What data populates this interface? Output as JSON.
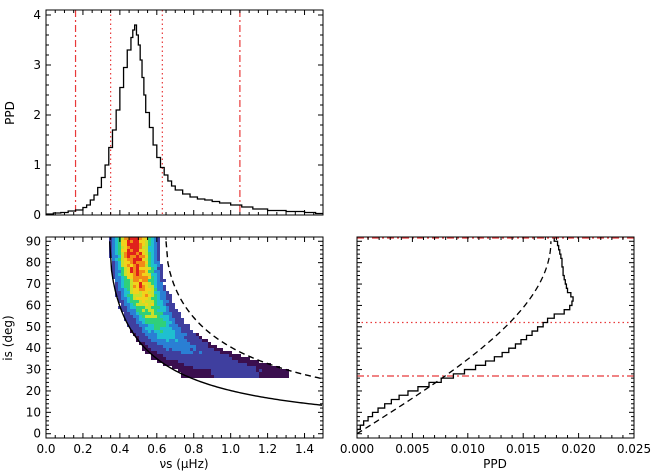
{
  "chart_data": [
    {
      "type": "line",
      "panel": "top-marginal",
      "xlabel": "",
      "ylabel": "PPD",
      "xlim": [
        0.0,
        1.5
      ],
      "ylim": [
        0,
        4.1
      ],
      "yticks": [
        0,
        1,
        2,
        3,
        4
      ],
      "xticks": [
        0.0,
        0.2,
        0.4,
        0.6,
        0.8,
        1.0,
        1.2,
        1.4
      ],
      "show_xtick_labels": false,
      "series": [
        {
          "style": "histogram-step",
          "color": "#000000",
          "x": [
            0.0,
            0.04,
            0.08,
            0.12,
            0.16,
            0.2,
            0.22,
            0.24,
            0.26,
            0.28,
            0.3,
            0.32,
            0.34,
            0.36,
            0.38,
            0.4,
            0.42,
            0.44,
            0.46,
            0.47,
            0.48,
            0.49,
            0.5,
            0.51,
            0.52,
            0.53,
            0.54,
            0.56,
            0.58,
            0.6,
            0.62,
            0.64,
            0.66,
            0.68,
            0.7,
            0.74,
            0.78,
            0.82,
            0.86,
            0.9,
            0.94,
            1.0,
            1.06,
            1.12,
            1.2,
            1.3,
            1.4,
            1.46,
            1.5
          ],
          "y": [
            0.02,
            0.04,
            0.05,
            0.08,
            0.1,
            0.15,
            0.2,
            0.3,
            0.4,
            0.55,
            0.75,
            1.0,
            1.35,
            1.7,
            2.1,
            2.55,
            2.95,
            3.3,
            3.55,
            3.7,
            3.8,
            3.6,
            3.4,
            3.1,
            2.75,
            2.4,
            2.05,
            1.75,
            1.4,
            1.15,
            0.95,
            0.8,
            0.68,
            0.58,
            0.5,
            0.42,
            0.36,
            0.32,
            0.3,
            0.27,
            0.24,
            0.2,
            0.16,
            0.12,
            0.09,
            0.07,
            0.05,
            0.03,
            0.02
          ]
        }
      ],
      "vlines": [
        {
          "x": 0.16,
          "style": "dash-dot",
          "color": "#e8393a"
        },
        {
          "x": 0.35,
          "style": "dotted",
          "color": "#e8393a"
        },
        {
          "x": 0.63,
          "style": "dotted",
          "color": "#e8393a"
        },
        {
          "x": 1.05,
          "style": "dash-dot",
          "color": "#e8393a"
        }
      ]
    },
    {
      "type": "heatmap",
      "panel": "main-joint",
      "xlabel": "νs (μHz)",
      "ylabel": "is (deg)",
      "xlim": [
        0.0,
        1.5
      ],
      "ylim": [
        -2,
        92
      ],
      "xticks": [
        0.0,
        0.2,
        0.4,
        0.6,
        0.8,
        1.0,
        1.2,
        1.4
      ],
      "yticks": [
        0,
        10,
        20,
        30,
        40,
        50,
        60,
        70,
        80,
        90
      ],
      "colormap": [
        "#3b0f4f",
        "#3f3f9f",
        "#2a7fd4",
        "#1fbfd0",
        "#2fd07a",
        "#c8e02a",
        "#f2d21c",
        "#f28a16",
        "#e0211c"
      ],
      "density_ridge": {
        "i": [
          90,
          85,
          80,
          75,
          70,
          65,
          60,
          55,
          50,
          45,
          40,
          35,
          30
        ],
        "nu": [
          0.47,
          0.47,
          0.48,
          0.49,
          0.5,
          0.52,
          0.54,
          0.57,
          0.61,
          0.66,
          0.73,
          0.85,
          1.02
        ],
        "width": [
          0.14,
          0.14,
          0.14,
          0.14,
          0.14,
          0.15,
          0.15,
          0.16,
          0.17,
          0.19,
          0.22,
          0.28,
          0.36
        ],
        "peak_level": [
          1.0,
          0.98,
          0.95,
          0.9,
          0.82,
          0.72,
          0.62,
          0.52,
          0.42,
          0.32,
          0.22,
          0.14,
          0.08
        ]
      },
      "curves": [
        {
          "style": "solid",
          "color": "#000000",
          "nu_ref": 0.345,
          "x_range": [
            0.345,
            1.5
          ]
        },
        {
          "style": "dashed",
          "color": "#000000",
          "nu_ref": 0.65,
          "x_range": [
            0.65,
            1.5
          ]
        }
      ]
    },
    {
      "type": "line",
      "panel": "right-marginal",
      "xlabel": "PPD",
      "ylabel": "",
      "xlim": [
        0.0,
        0.025
      ],
      "ylim": [
        -2,
        92
      ],
      "xticks": [
        0.0,
        0.005,
        0.01,
        0.015,
        0.02,
        0.025
      ],
      "xtick_labels": [
        "0.000",
        "0.005",
        "0.010",
        "0.015",
        "0.020",
        "0.025"
      ],
      "show_ytick_labels": false,
      "series": [
        {
          "style": "histogram-step",
          "color": "#000000",
          "i": [
            0,
            2,
            4,
            6,
            8,
            10,
            12,
            14,
            16,
            18,
            20,
            22,
            24,
            26,
            28,
            30,
            32,
            34,
            36,
            38,
            40,
            42,
            44,
            46,
            48,
            50,
            52,
            54,
            56,
            58,
            60,
            62,
            64,
            66,
            68,
            70,
            72,
            74,
            76,
            78,
            80,
            82,
            84,
            86,
            88,
            90
          ],
          "ppd": [
            0.0,
            0.0003,
            0.0006,
            0.001,
            0.0014,
            0.0019,
            0.0025,
            0.0031,
            0.0038,
            0.0046,
            0.0055,
            0.0065,
            0.0076,
            0.0087,
            0.0097,
            0.0107,
            0.0116,
            0.0124,
            0.0131,
            0.0137,
            0.0143,
            0.0148,
            0.0153,
            0.0158,
            0.0163,
            0.0168,
            0.0172,
            0.0178,
            0.0187,
            0.0192,
            0.0194,
            0.0195,
            0.0193,
            0.019,
            0.0189,
            0.0188,
            0.0187,
            0.0186,
            0.0186,
            0.0185,
            0.0185,
            0.0184,
            0.0183,
            0.0182,
            0.0181,
            0.0178
          ]
        },
        {
          "style": "dashed",
          "color": "#000000",
          "function": "sin(i)",
          "scale": 0.0175
        }
      ],
      "hlines": [
        {
          "i": 27,
          "style": "dash-dot",
          "color": "#e8393a"
        },
        {
          "i": 52,
          "style": "dotted",
          "color": "#e8393a"
        },
        {
          "i": 91.5,
          "style": "dash-dot",
          "color": "#e8393a"
        }
      ]
    }
  ]
}
